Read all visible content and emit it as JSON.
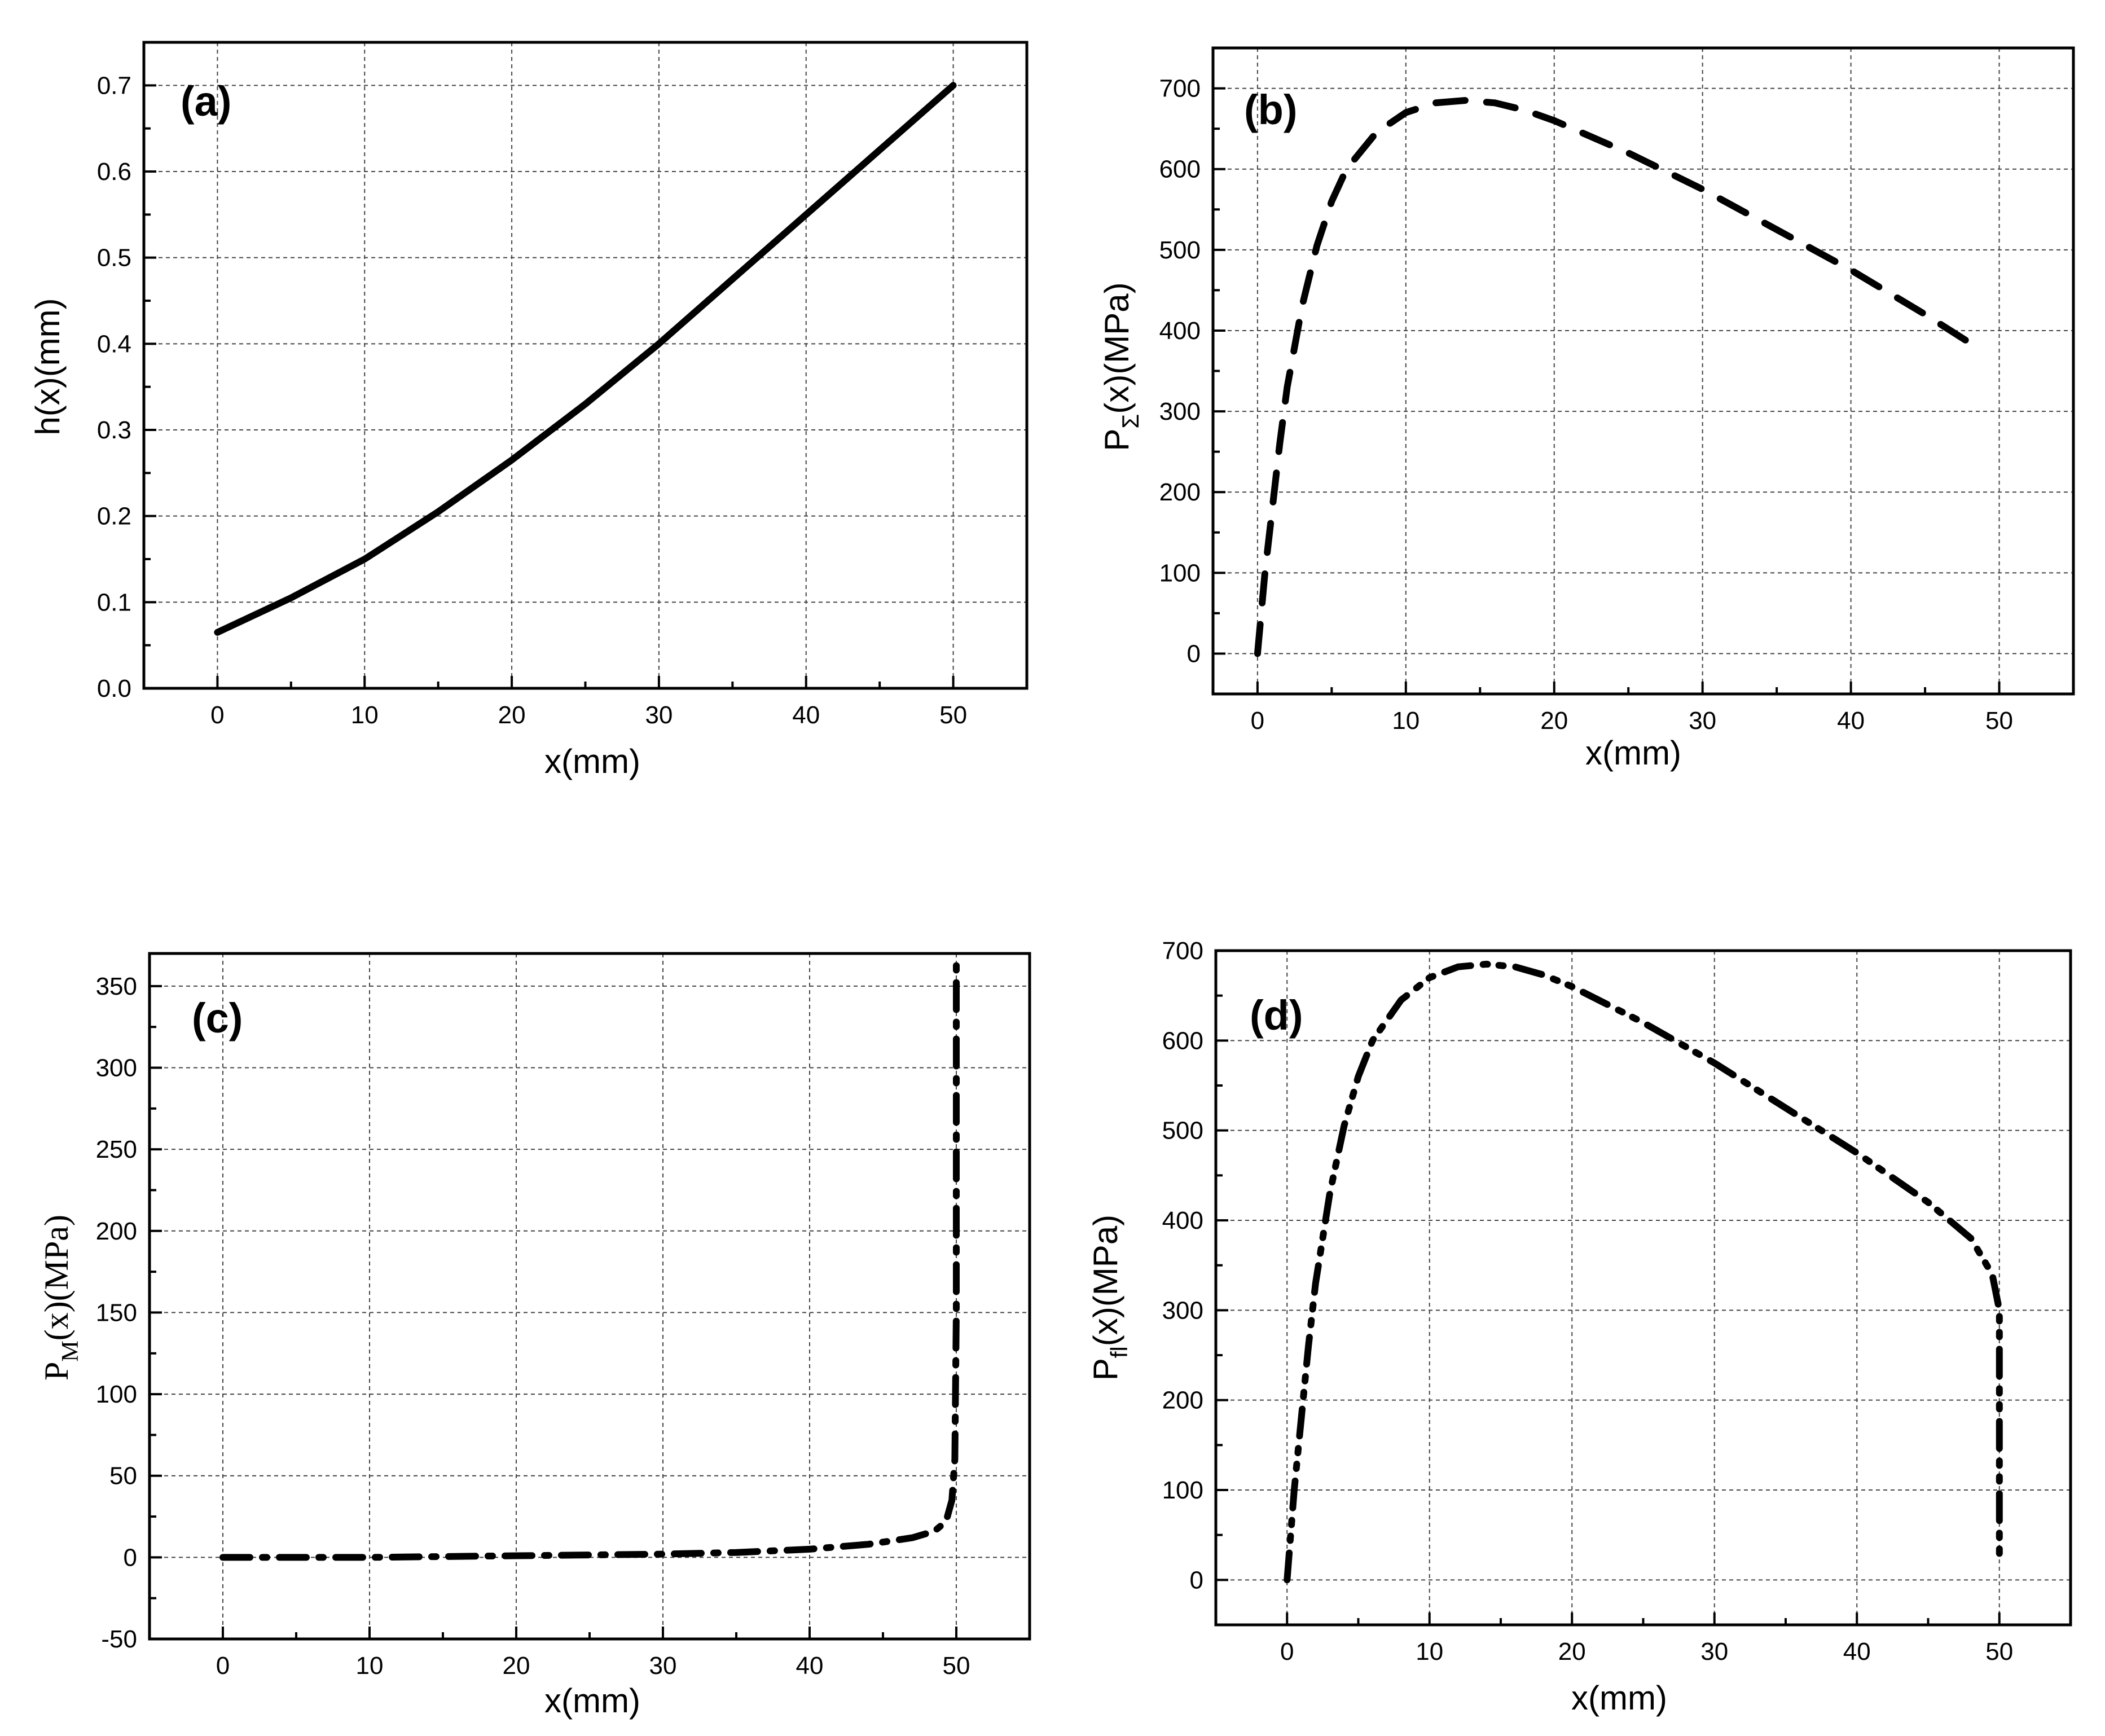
{
  "chart_data": [
    {
      "id": "a",
      "type": "line",
      "panel_label": "(a)",
      "xlabel": "x(mm)",
      "ylabel": "h(x)(mm)",
      "xlim": [
        -5,
        55
      ],
      "ylim": [
        0,
        0.75
      ],
      "xticks": [
        0,
        10,
        20,
        30,
        40,
        50
      ],
      "xtick_labels": [
        "0",
        "10",
        "20",
        "30",
        "40",
        "50"
      ],
      "yticks": [
        0,
        0.1,
        0.2,
        0.3,
        0.4,
        0.5,
        0.6,
        0.7
      ],
      "ytick_labels": [
        "0.0",
        "0.1",
        "0.2",
        "0.3",
        "0.4",
        "0.5",
        "0.6",
        "0.7"
      ],
      "grid": true,
      "line_style": "solid",
      "series": [
        {
          "name": "h(x)",
          "x": [
            0,
            5,
            10,
            15,
            20,
            25,
            30,
            35,
            40,
            45,
            50
          ],
          "y": [
            0.065,
            0.105,
            0.15,
            0.205,
            0.265,
            0.33,
            0.4,
            0.475,
            0.55,
            0.625,
            0.7
          ]
        }
      ]
    },
    {
      "id": "b",
      "type": "line",
      "panel_label": "(b)",
      "xlabel": "x(mm)",
      "ylabel_main": "P",
      "ylabel_sub": "Σ",
      "ylabel_rest": "(x)(MPa)",
      "xlim": [
        -3,
        55
      ],
      "ylim": [
        -50,
        750
      ],
      "xticks": [
        0,
        10,
        20,
        30,
        40,
        50
      ],
      "xtick_labels": [
        "0",
        "10",
        "20",
        "30",
        "40",
        "50"
      ],
      "yticks": [
        0,
        100,
        200,
        300,
        400,
        500,
        600,
        700
      ],
      "ytick_labels": [
        "0",
        "100",
        "200",
        "300",
        "400",
        "500",
        "600",
        "700"
      ],
      "grid": true,
      "line_style": "dash",
      "series": [
        {
          "name": "PΣ(x)",
          "x": [
            0,
            0.5,
            1,
            1.5,
            2,
            3,
            4,
            5,
            6,
            8,
            10,
            12,
            14,
            16,
            18,
            20,
            25,
            30,
            35,
            40,
            45,
            48
          ],
          "y": [
            0,
            100,
            180,
            260,
            330,
            430,
            505,
            560,
            600,
            645,
            670,
            682,
            685,
            682,
            673,
            660,
            620,
            575,
            525,
            475,
            420,
            385
          ]
        }
      ]
    },
    {
      "id": "c",
      "type": "line",
      "panel_label": "(c)",
      "xlabel": "x(mm)",
      "ylabel_main": "P",
      "ylabel_sub": "M",
      "ylabel_rest": "(x)(MPa)",
      "xlim": [
        -5,
        55
      ],
      "ylim": [
        -50,
        370
      ],
      "xticks": [
        0,
        10,
        20,
        30,
        40,
        50
      ],
      "xtick_labels": [
        "0",
        "10",
        "20",
        "30",
        "40",
        "50"
      ],
      "yticks": [
        -50,
        0,
        50,
        100,
        150,
        200,
        250,
        300,
        350
      ],
      "ytick_labels": [
        "-50",
        "0",
        "50",
        "100",
        "150",
        "200",
        "250",
        "300",
        "350"
      ],
      "grid": true,
      "line_style": "dash-dot",
      "series": [
        {
          "name": "PM(x)",
          "x": [
            0,
            10,
            20,
            30,
            35,
            40,
            44,
            47,
            48.5,
            49.3,
            49.7,
            49.9,
            50,
            50,
            50
          ],
          "y": [
            0,
            0,
            1,
            2,
            3,
            5,
            8,
            12,
            16,
            22,
            35,
            60,
            150,
            300,
            365
          ]
        }
      ]
    },
    {
      "id": "d",
      "type": "line",
      "panel_label": "(d)",
      "xlabel": "x(mm)",
      "ylabel_main": "P",
      "ylabel_sub": "fl",
      "ylabel_rest": "(x)(MPa)",
      "xlim": [
        -5,
        55
      ],
      "ylim": [
        -50,
        700
      ],
      "xticks": [
        0,
        10,
        20,
        30,
        40,
        50
      ],
      "xtick_labels": [
        "0",
        "10",
        "20",
        "30",
        "40",
        "50"
      ],
      "yticks": [
        0,
        100,
        200,
        300,
        400,
        500,
        600,
        700
      ],
      "ytick_labels": [
        "0",
        "100",
        "200",
        "300",
        "400",
        "500",
        "600",
        "700"
      ],
      "grid": true,
      "line_style": "dash-dot-dot",
      "series": [
        {
          "name": "Pfl(x)",
          "x": [
            0,
            0.5,
            1,
            1.5,
            2,
            3,
            4,
            5,
            6,
            8,
            10,
            12,
            14,
            16,
            18,
            20,
            25,
            30,
            35,
            40,
            45,
            48,
            49.5,
            50,
            50,
            50
          ],
          "y": [
            0,
            100,
            180,
            260,
            330,
            430,
            505,
            560,
            600,
            645,
            670,
            682,
            685,
            682,
            673,
            660,
            620,
            575,
            525,
            475,
            420,
            380,
            340,
            300,
            150,
            25
          ]
        }
      ]
    }
  ]
}
